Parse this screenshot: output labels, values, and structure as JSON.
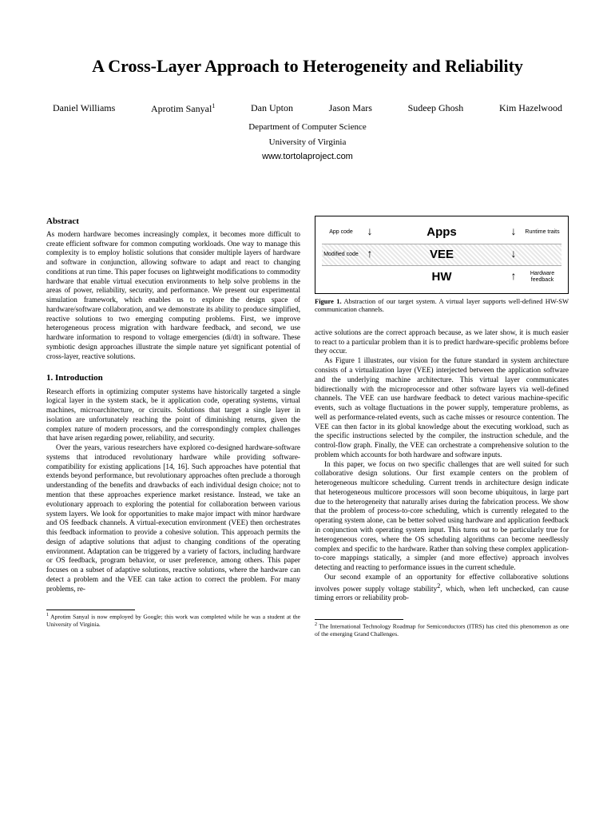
{
  "title": "A Cross-Layer Approach to Heterogeneity and Reliability",
  "authors": [
    "Daniel Williams",
    "Aprotim Sanyal",
    "Dan Upton",
    "Jason Mars",
    "Sudeep Ghosh",
    "Kim Hazelwood"
  ],
  "author_superscript_index": 1,
  "author_superscript": "1",
  "affiliation_line1": "Department of Computer Science",
  "affiliation_line2": "University of Virginia",
  "url": "www.tortolaproject.com",
  "abstract_heading": "Abstract",
  "abstract_body": "As modern hardware becomes increasingly complex, it becomes more difficult to create efficient software for common computing workloads. One way to manage this complexity is to employ holistic solutions that consider multiple layers of hardware and software in conjunction, allowing software to adapt and react to changing conditions at run time. This paper focuses on lightweight modifications to commodity hardware that enable virtual execution environments to help solve problems in the areas of power, reliability, security, and performance. We present our experimental simulation framework, which enables us to explore the design space of hardware/software collaboration, and we demonstrate its ability to produce simplified, reactive solutions to two emerging computing problems. First, we improve heterogeneous process migration with hardware feedback, and second, we use hardware information to respond to voltage emergencies (di/dt) in software. These symbiotic design approaches illustrate the simple nature yet significant potential of cross-layer, reactive solutions.",
  "intro_heading": "1.   Introduction",
  "intro_p1": "Research efforts in optimizing computer systems have historically targeted a single logical layer in the system stack, be it application code, operating systems, virtual machines, microarchitecture, or circuits. Solutions that target a single layer in isolation are unfortunately reaching the point of diminishing returns, given the complex nature of modern processors, and the correspondingly complex challenges that have arisen regarding power, reliability, and security.",
  "intro_p2": "Over the years, various researchers have explored co-designed hardware-software systems that introduced revolutionary hardware while providing software-compatibility for existing applications [14, 16]. Such approaches have potential that extends beyond performance, but revolutionary approaches often preclude a thorough understanding of the benefits and drawbacks of each individual design choice; not to mention that these approaches experience market resistance. Instead, we take an evolutionary approach to exploring the potential for collaboration between various system layers. We look for opportunities to make major impact with minor hardware and OS feedback channels. A virtual-execution environment (VEE) then orchestrates this feedback information to provide a cohesive solution. This approach permits the design of adaptive solutions that adjust to changing conditions of the operating environment. Adaptation can be triggered by a variety of factors, including hardware or OS feedback, program behavior, or user preference, among others. This paper focuses on a subset of adaptive solutions, reactive solutions, where the hardware can detect a problem and the VEE can take action to correct the problem. For many problems, re-",
  "footnote_left": "Aprotim Sanyal is now employed by Google; this work was completed while he was a student at the University of Virginia.",
  "footnote_left_marker": "1",
  "figure": {
    "row1_left": "App code",
    "row1_center": "Apps",
    "row1_right": "Runtime traits",
    "row2_left": "Modified code",
    "row2_center": "VEE",
    "row3_center": "HW",
    "row3_right": "Hardware feedback"
  },
  "figure_caption_label": "Figure 1.",
  "figure_caption_text": "Abstraction of our target system. A virtual layer supports well-defined HW-SW communication channels.",
  "right_p1": "active solutions are the correct approach because, as we later show, it is much easier to react to a particular problem than it is to predict hardware-specific problems before they occur.",
  "right_p2": "As Figure 1 illustrates, our vision for the future standard in system architecture consists of a virtualization layer (VEE) interjected between the application software and the underlying machine architecture. This virtual layer communicates bidirectionally with the microprocessor and other software layers via well-defined channels. The VEE can use hardware feedback to detect various machine-specific events, such as voltage fluctuations in the power supply, temperature problems, as well as performance-related events, such as cache misses or resource contention. The VEE can then factor in its global knowledge about the executing workload, such as the specific instructions selected by the compiler, the instruction schedule, and the control-flow graph. Finally, the VEE can orchestrate a comprehensive solution to the problem which accounts for both hardware and software inputs.",
  "right_p3": "In this paper, we focus on two specific challenges that are well suited for such collaborative design solutions. Our first example centers on the problem of heterogeneous multicore scheduling. Current trends in architecture design indicate that heterogeneous multicore processors will soon become ubiquitous, in large part due to the heterogeneity that naturally arises during the fabrication process. We show that the problem of process-to-core scheduling, which is currently relegated to the operating system alone, can be better solved using hardware and application feedback in conjunction with operating system input. This turns out to be particularly true for heterogeneous cores, where the OS scheduling algorithms can become needlessly complex and specific to the hardware. Rather than solving these complex application-to-core mappings statically, a simpler (and more effective) approach involves detecting and reacting to performance issues in the current schedule.",
  "right_p4_a": "Our second example of an opportunity for effective collaborative solutions involves power supply voltage stability",
  "right_p4_sup": "2",
  "right_p4_b": ", which, when left unchecked, can cause timing errors or reliability prob-",
  "footnote_right_marker": "2",
  "footnote_right": "The International Technology Roadmap for Semiconductors (ITRS) has cited this phenomenon as one of the emerging Grand Challenges."
}
